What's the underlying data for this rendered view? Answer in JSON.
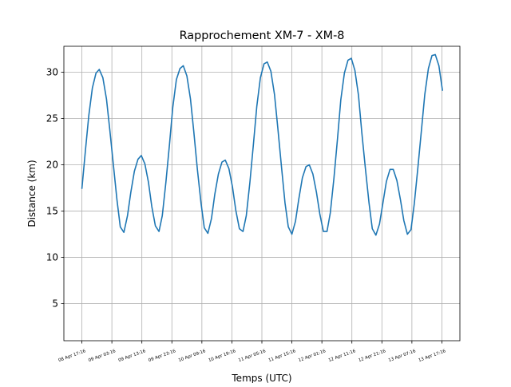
{
  "chart_data": {
    "type": "line",
    "title": "Rapprochement XM-7 - XM-8",
    "xlabel": "Temps (UTC)",
    "ylabel": "Distance (km)",
    "x_ticks": [
      "08 Apr 17:16",
      "09 Apr 03:16",
      "09 Apr 13:16",
      "09 Apr 23:16",
      "10 Apr 09:16",
      "10 Apr 19:16",
      "11 Apr 05:16",
      "11 Apr 15:16",
      "12 Apr 01:16",
      "12 Apr 11:16",
      "12 Apr 21:16",
      "13 Apr 07:16",
      "13 Apr 17:16"
    ],
    "x_tick_hours": [
      0,
      10,
      20,
      30,
      40,
      50,
      60,
      70,
      80,
      90,
      100,
      110,
      120
    ],
    "xlim_hours": [
      -6.0,
      126.0
    ],
    "y_ticks": [
      5,
      10,
      15,
      20,
      25,
      30
    ],
    "ylim": [
      1.0,
      32.8
    ],
    "grid": true,
    "series": [
      {
        "color": "#1f77b4",
        "x_hours": [
          0,
          1.2,
          2.3,
          3.5,
          4.7,
          5.8,
          7,
          8.2,
          9.3,
          10.5,
          11.7,
          12.8,
          14,
          15.2,
          16.3,
          17.5,
          18.7,
          19.8,
          21,
          22.2,
          23.3,
          24.5,
          25.7,
          26.8,
          28,
          29.2,
          30.3,
          31.5,
          32.7,
          33.8,
          35,
          36.2,
          37.3,
          38.5,
          39.7,
          40.8,
          42,
          43.2,
          44.3,
          45.5,
          46.7,
          47.8,
          49,
          50.2,
          51.3,
          52.5,
          53.7,
          54.8,
          56,
          57.2,
          58.3,
          59.5,
          60.7,
          61.8,
          63,
          64.2,
          65.3,
          66.5,
          67.7,
          68.8,
          70,
          71.2,
          72.3,
          73.5,
          74.7,
          75.8,
          77,
          78.2,
          79.3,
          80.5,
          81.7,
          82.8,
          84,
          85.2,
          86.3,
          87.5,
          88.7,
          89.8,
          91,
          92.2,
          93.3,
          94.5,
          95.7,
          96.8,
          98,
          99.2,
          100.3,
          101.5,
          102.7,
          103.8,
          105,
          106.2,
          107.3,
          108.5,
          109.7,
          110.8,
          112,
          113.2,
          114.3,
          115.5,
          116.7,
          117.8,
          119,
          120.2
        ],
        "values": [
          17.4,
          21.6,
          25.3,
          28.3,
          29.9,
          30.3,
          29.4,
          27.1,
          23.8,
          20.0,
          16.2,
          13.3,
          12.7,
          14.5,
          17.0,
          19.3,
          20.6,
          21.0,
          20.1,
          18.1,
          15.5,
          13.4,
          12.8,
          14.5,
          18.1,
          22.2,
          26.2,
          29.2,
          30.4,
          30.7,
          29.6,
          27.1,
          23.6,
          19.5,
          15.9,
          13.2,
          12.6,
          14.2,
          16.8,
          19.0,
          20.3,
          20.5,
          19.6,
          17.6,
          15.1,
          13.1,
          12.8,
          14.5,
          18.1,
          22.3,
          26.3,
          29.4,
          30.9,
          31.1,
          30.1,
          27.6,
          24.0,
          19.9,
          15.9,
          13.3,
          12.5,
          13.9,
          16.3,
          18.6,
          19.8,
          20.0,
          19.0,
          17.0,
          14.7,
          12.8,
          12.8,
          14.8,
          18.5,
          22.8,
          27.0,
          29.9,
          31.3,
          31.5,
          30.2,
          27.5,
          23.5,
          19.6,
          15.9,
          13.1,
          12.4,
          13.6,
          15.8,
          18.2,
          19.5,
          19.5,
          18.3,
          16.2,
          14.0,
          12.5,
          13.0,
          15.8,
          19.7,
          23.8,
          27.6,
          30.4,
          31.8,
          31.9,
          30.7,
          28.0
        ]
      }
    ]
  }
}
